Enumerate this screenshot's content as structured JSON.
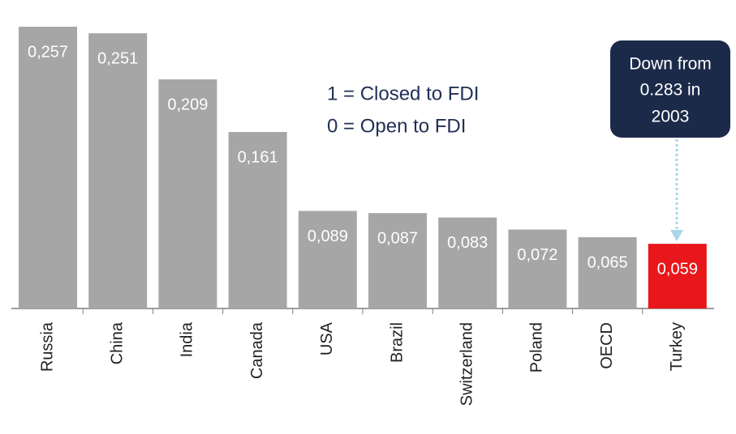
{
  "chart_data": {
    "type": "bar",
    "categories": [
      "Russia",
      "China",
      "India",
      "Canada",
      "USA",
      "Brazil",
      "Switzerland",
      "Poland",
      "OECD",
      "Turkey"
    ],
    "values": [
      0.257,
      0.251,
      0.209,
      0.161,
      0.089,
      0.087,
      0.083,
      0.072,
      0.065,
      0.059
    ],
    "value_labels": [
      "0,257",
      "0,251",
      "0,209",
      "0,161",
      "0,089",
      "0,087",
      "0,083",
      "0,072",
      "0,065",
      "0,059"
    ],
    "colors": [
      "#a6a6a6",
      "#a6a6a6",
      "#a6a6a6",
      "#a6a6a6",
      "#a6a6a6",
      "#a6a6a6",
      "#a6a6a6",
      "#a6a6a6",
      "#a6a6a6",
      "#e8171b"
    ],
    "legend_lines": [
      "1 = Closed to FDI",
      "0 = Open to FDI"
    ],
    "annotation": [
      "Down from",
      "0.283 in",
      "2003"
    ]
  }
}
